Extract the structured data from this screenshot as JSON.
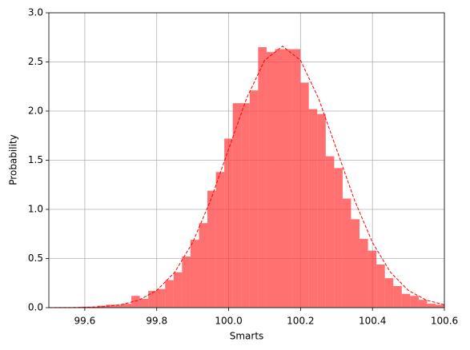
{
  "chart_data": {
    "type": "histogram",
    "x_label": "Smarts",
    "y_label": "Probability",
    "color": "#ff4040",
    "opacity": 0.75,
    "bins": [
      99.4945,
      99.518,
      99.5415,
      99.565,
      99.5885,
      99.612,
      99.6355,
      99.659,
      99.6825,
      99.706,
      99.7295,
      99.753,
      99.7765,
      99.8,
      99.8235,
      99.847,
      99.8705,
      99.894,
      99.9175,
      99.941,
      99.9645,
      99.988,
      100.0115,
      100.035,
      100.0585,
      100.082,
      100.1055,
      100.129,
      100.1525,
      100.176,
      100.1995,
      100.223,
      100.2465,
      100.27,
      100.2935,
      100.317,
      100.3405,
      100.364,
      100.3875,
      100.411,
      100.4345,
      100.458,
      100.4815,
      100.505,
      100.5285,
      100.552,
      100.5755,
      100.599
    ],
    "values": [
      0.005,
      0.005,
      0.005,
      0.005,
      0.01,
      0.01,
      0.02,
      0.03,
      0.03,
      0.04,
      0.12,
      0.09,
      0.17,
      0.19,
      0.28,
      0.36,
      0.52,
      0.69,
      0.86,
      1.19,
      1.38,
      1.72,
      2.08,
      2.08,
      2.21,
      2.65,
      2.6,
      2.63,
      2.63,
      2.63,
      2.29,
      2.02,
      1.97,
      1.54,
      1.42,
      1.11,
      0.9,
      0.7,
      0.58,
      0.44,
      0.3,
      0.22,
      0.14,
      0.12,
      0.08,
      0.04,
      0.03
    ],
    "curve": {
      "color": "#ff0000",
      "dashed": true,
      "x": [
        99.5,
        99.55,
        99.6,
        99.65,
        99.7,
        99.75,
        99.8,
        99.85,
        99.9,
        99.95,
        100.0,
        100.05,
        100.1,
        100.15,
        100.2,
        100.25,
        100.3,
        100.35,
        100.4,
        100.45,
        100.5,
        100.55,
        100.6
      ],
      "values": [
        0.0002,
        0.0009,
        0.0032,
        0.0103,
        0.0295,
        0.076,
        0.175,
        0.36,
        0.663,
        1.094,
        1.613,
        2.13,
        2.516,
        2.66,
        2.516,
        2.13,
        1.613,
        1.094,
        0.663,
        0.36,
        0.175,
        0.076,
        0.0295
      ]
    },
    "xlim": [
      99.5,
      100.6
    ],
    "xticks": [
      99.6,
      99.8,
      {
        "value": 100.0,
        "label": "100.0"
      },
      100.2,
      100.4,
      100.6
    ],
    "ylim": [
      0,
      3
    ],
    "yticks": [
      {
        "value": 0,
        "label": "0.0"
      },
      0.5,
      {
        "value": 1,
        "label": "1.0"
      },
      1.5,
      {
        "value": 2,
        "label": "2.0"
      },
      2.5,
      {
        "value": 3,
        "label": "3.0"
      }
    ],
    "grid": true
  }
}
